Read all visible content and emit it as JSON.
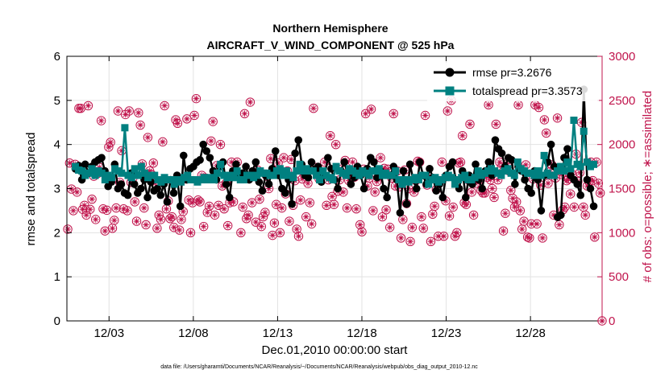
{
  "chart_data": {
    "type": "line",
    "title": "Northern Hemisphere",
    "subtitle": "AIRCRAFT_V_WIND_COMPONENT @ 525 hPa",
    "xlabel": "Dec.01,2010 00:00:00 start",
    "ylabel": "rmse and totalspread",
    "y2label": "# of obs: o=possible; ∗=assimilated",
    "footnote": "data file: /Users/gharamti/Documents/NCAR/Reanalysis/~/Documents/NCAR/Reanalysis/webpub/obs_diag_output_2010-12.nc",
    "xlim": [
      0.5,
      32.25
    ],
    "ylim": [
      0,
      6
    ],
    "y2lim": [
      0,
      3000
    ],
    "xticks": [
      3,
      8,
      13,
      18,
      23,
      28
    ],
    "xtick_labels": [
      "12/03",
      "12/08",
      "12/13",
      "12/18",
      "12/23",
      "12/28"
    ],
    "yticks": [
      0,
      1,
      2,
      3,
      4,
      5,
      6
    ],
    "y2ticks": [
      0,
      500,
      1000,
      1500,
      2000,
      2500,
      3000
    ],
    "grid": true,
    "legend_position": "top-right",
    "colors": {
      "rmse": "#000000",
      "spread": "#008080",
      "obs": "#c0144c",
      "grid": "#e2e2e2"
    },
    "series": [
      {
        "name": "rmse",
        "legend": "rmse pr=3.2676",
        "values": [
          3.45,
          3.52,
          3.2,
          3.55,
          3.35,
          3.5,
          3.6,
          3.65,
          3.7,
          3.4,
          3.05,
          3.15,
          3.55,
          3.0,
          3.1,
          2.9,
          2.85,
          3.35,
          3.1,
          2.9,
          3.0,
          3.2,
          2.8,
          3.15,
          2.95,
          3.0,
          2.85,
          3.1,
          2.7,
          3.2,
          2.9,
          3.3,
          2.6,
          3.75,
          3.2,
          3.45,
          3.5,
          3.6,
          3.65,
          4.0,
          3.85,
          3.7,
          3.4,
          3.2,
          3.5,
          3.6,
          3.1,
          2.8,
          3.4,
          3.55,
          3.3,
          3.35,
          3.5,
          3.2,
          3.4,
          3.6,
          3.15,
          2.95,
          3.3,
          3.1,
          3.45,
          3.85,
          3.3,
          3.0,
          2.9,
          3.2,
          2.65,
          3.8,
          4.1,
          3.55,
          3.3,
          3.25,
          3.6,
          3.4,
          3.5,
          3.15,
          3.3,
          3.7,
          3.45,
          3.2,
          3.0,
          3.4,
          3.6,
          3.35,
          3.1,
          3.25,
          3.5,
          3.3,
          3.0,
          3.45,
          3.7,
          3.6,
          3.25,
          3.4,
          3.0,
          2.8,
          3.3,
          3.5,
          3.2,
          2.45,
          3.4,
          2.65,
          3.55,
          3.2,
          3.0,
          3.6,
          3.3,
          3.1,
          3.45,
          3.25,
          2.95,
          3.1,
          2.8,
          3.3,
          3.5,
          3.6,
          3.2,
          3.0,
          3.4,
          2.8,
          3.3,
          3.1,
          3.55,
          3.2,
          3.0,
          3.4,
          3.6,
          3.3,
          4.1,
          3.9,
          3.8,
          3.5,
          3.7,
          3.65,
          3.1,
          3.5,
          3.4,
          3.2,
          3.0,
          2.9,
          3.4,
          3.2,
          2.5,
          3.3,
          3.6,
          4.0,
          3.5,
          2.35,
          2.4,
          3.7,
          3.9,
          3.3,
          3.2,
          3.1,
          2.85,
          5.25,
          3.2,
          3.0,
          2.6
        ],
        "marker": "circle"
      },
      {
        "name": "totalspread",
        "legend": "totalspread pr=3.3573",
        "values": [
          3.5,
          3.42,
          3.4,
          3.3,
          3.35,
          3.45,
          3.3,
          3.4,
          3.35,
          3.2,
          3.3,
          3.25,
          3.45,
          3.4,
          3.35,
          4.38,
          3.3,
          3.25,
          3.45,
          3.3,
          3.5,
          3.35,
          3.25,
          3.3,
          3.3,
          3.2,
          3.15,
          3.25,
          3.2,
          3.2,
          3.1,
          3.2,
          3.15,
          3.25,
          3.3,
          3.2,
          3.2,
          3.15,
          3.2,
          3.25,
          3.2,
          3.25,
          3.2,
          3.35,
          3.55,
          3.3,
          3.25,
          3.3,
          3.25,
          3.4,
          3.2,
          3.2,
          3.3,
          3.3,
          3.25,
          3.3,
          3.4,
          3.35,
          3.35,
          3.3,
          3.3,
          3.4,
          3.45,
          3.3,
          3.4,
          3.3,
          3.25,
          3.4,
          3.55,
          3.4,
          3.45,
          3.4,
          3.4,
          3.3,
          3.2,
          3.4,
          3.3,
          3.25,
          3.2,
          3.5,
          3.4,
          3.35,
          3.3,
          3.45,
          3.4,
          3.35,
          3.3,
          3.4,
          3.35,
          3.3,
          3.4,
          3.4,
          3.45,
          3.3,
          3.35,
          3.3,
          3.3,
          3.4,
          3.2,
          3.1,
          3.2,
          3.15,
          3.2,
          3.25,
          3.2,
          3.3,
          3.3,
          3.1,
          3.2,
          3.25,
          3.15,
          3.2,
          3.25,
          3.3,
          3.25,
          3.1,
          3.2,
          3.25,
          3.3,
          3.2,
          3.2,
          3.25,
          3.4,
          3.3,
          3.35,
          3.4,
          3.45,
          3.4,
          3.35,
          3.3,
          3.4,
          3.45,
          3.35,
          3.3,
          3.6,
          3.45,
          3.4,
          3.35,
          3.35,
          3.3,
          3.4,
          3.3,
          3.75,
          3.35,
          3.3,
          3.3,
          3.4,
          3.5,
          3.4,
          3.6,
          3.45,
          4.55,
          3.55,
          3.5,
          4.3,
          3.6,
          3.5,
          3.55
        ],
        "marker": "square"
      },
      {
        "name": "obs_possible",
        "axis": "right",
        "values": [
          1040,
          1790,
          1495,
          1250,
          1775,
          1460,
          2410,
          2410,
          1265,
          1310,
          1200,
          2440,
          1265,
          1380,
          1640,
          1150,
          1670,
          1740,
          2270,
          1270,
          1020,
          1255,
          1970,
          2025,
          1050,
          1140,
          1280,
          2380,
          1570,
          1930,
          1270,
          2340,
          1250,
          2380,
          1570,
          1620,
          1350,
          1130,
          2360,
          2220,
          1780,
          1280,
          1090,
          2080,
          1700,
          1660,
          1790,
          1560,
          1050,
          1200,
          1150,
          2030,
          2440,
          1270,
          1360,
          1160,
          1180,
          1060,
          2280,
          2240,
          1030,
          1150,
          1240,
          1610,
          2290,
          1370,
          1000,
          1340,
          2330,
          2520,
          1370,
          1350,
          1650,
          1070,
          1620,
          1230,
          1300,
          2040,
          2260,
          1200,
          1760,
          1310,
          2000,
          1530,
          1270,
          1560,
          1080,
          1340,
          1800,
          1350,
          1700,
          1800,
          1650,
          1000,
          1290,
          2350,
          1160,
          1200,
          2480,
          1340,
          1650,
          1120,
          1710,
          1380,
          1070,
          1180,
          1230,
          1640,
          1500,
          1840,
          970,
          1110,
          1320,
          1790,
          1000,
          1280,
          1850,
          1440,
          1700,
          1130,
          1830,
          1310,
          1590,
          1040,
          960,
          1370,
          1610,
          1660,
          1180,
          1560,
          1340,
          1100,
          2410,
          1740,
          1660,
          1610,
          1630,
          1650,
          1800,
          1310,
          1600,
          2100,
          1410,
          1320,
          2000,
          1470,
          1600,
          1720,
          1460,
          1820,
          1280,
          1590,
          1700,
          1800,
          1630,
          1270,
          1700,
          1090,
          1010,
          1720,
          2350,
          1530,
          1620,
          2400,
          1250,
          1460,
          1580,
          1640,
          1850,
          1180,
          1730,
          1260,
          1720,
          1060,
          1620,
          2350,
          1530,
          1700,
          1520,
          940,
          1150,
          1710,
          1330,
          1500,
          900,
          1060,
          1460,
          1590,
          1810,
          1800,
          1180,
          1050,
          2330,
          1540,
          1640,
          900,
          1210,
          1300,
          1490,
          960,
          1590,
          1800,
          960,
          1360,
          2380,
          1190,
          2500,
          1290,
          960,
          1000,
          1790,
          1800,
          2100,
          1340,
          1320,
          1600,
          2230,
          1460,
          1200,
          1560,
          1610,
          1600,
          1480,
          1450,
          1450,
          1630,
          2450,
          1600,
          1500,
          1400,
          2230,
          1600,
          1800,
          1740,
          1020,
          1220,
          1780,
          1700,
          1480,
          1390,
          1290,
          1350,
          2450,
          1250,
          1040,
          1130,
          1770,
          950,
          940,
          1100,
          1610,
          2450,
          1100,
          2420,
          1540,
          940,
          2280,
          2130,
          1560,
          1690,
          1770,
          1200,
          1620,
          2300,
          1090,
          1660,
          1260,
          1290,
          1590,
          1610,
          1440,
          1660,
          1290,
          1890,
          1580,
          1680,
          2250,
          1290,
          1200,
          1530,
          1580,
          1800,
          1590,
          950,
          1800,
          1560,
          1450,
          0
        ],
        "marker": "circle-open"
      }
    ],
    "obs_note": "assimilated counts equal possible counts (asterisk drawn inside each circle)"
  }
}
